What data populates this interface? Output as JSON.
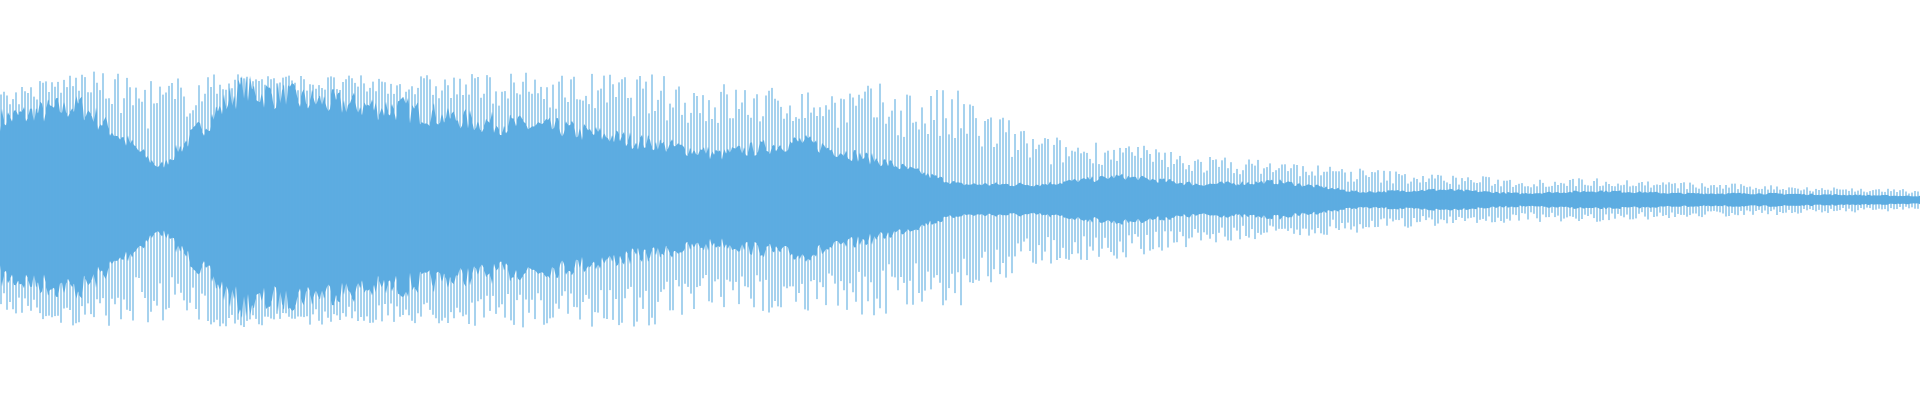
{
  "waveform": {
    "color": "#5dace1",
    "background": "#ffffff",
    "peak_amplitude": [
      0.85,
      1.0,
      0.95,
      0.98,
      0.96,
      0.96,
      0.98,
      0.98,
      0.98,
      0.92,
      0.85,
      0.9,
      0.85,
      0.5,
      0.45,
      0.35,
      0.3,
      0.25,
      0.2,
      0.17,
      0.17,
      0.14,
      0.12,
      0.1,
      0.08
    ],
    "body_amplitude": [
      0.62,
      0.73,
      0.25,
      0.85,
      0.75,
      0.7,
      0.6,
      0.55,
      0.45,
      0.35,
      0.45,
      0.3,
      0.12,
      0.12,
      0.18,
      0.12,
      0.14,
      0.06,
      0.08,
      0.05,
      0.07,
      0.05,
      0.05,
      0.04,
      0.03
    ]
  }
}
